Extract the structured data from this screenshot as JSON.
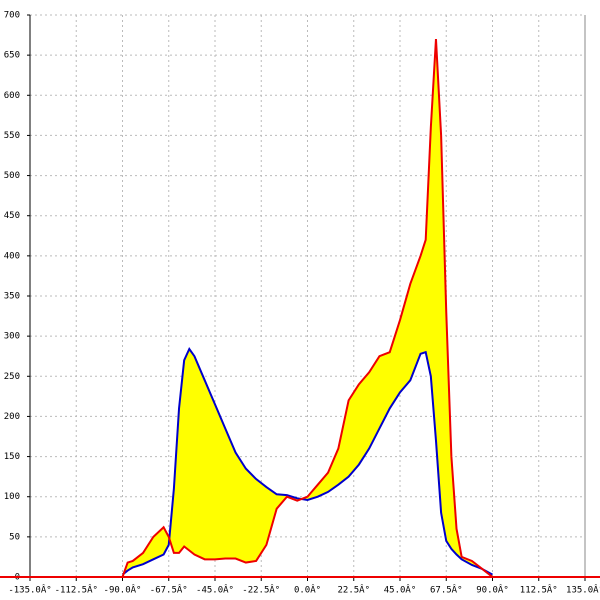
{
  "chart_data": {
    "type": "line",
    "x": [
      -90,
      -87.5,
      -85,
      -80,
      -75,
      -70,
      -67.5,
      -65,
      -62.5,
      -60,
      -57.5,
      -55,
      -50,
      -45,
      -40,
      -35,
      -30,
      -25,
      -20,
      -15,
      -10,
      -5,
      0,
      5,
      10,
      15,
      20,
      25,
      30,
      35,
      40,
      45,
      50,
      55,
      57.5,
      60,
      62.5,
      65,
      67.5,
      70,
      72.5,
      75,
      80,
      85,
      90
    ],
    "series": [
      {
        "color": "#0000cc",
        "values": [
          3,
          8,
          12,
          16,
          22,
          28,
          40,
          110,
          210,
          270,
          284,
          275,
          245,
          215,
          185,
          155,
          135,
          122,
          112,
          103,
          102,
          98,
          96,
          100,
          106,
          115,
          125,
          140,
          160,
          185,
          210,
          230,
          245,
          278,
          280,
          250,
          170,
          80,
          45,
          35,
          28,
          22,
          15,
          10,
          3
        ]
      },
      {
        "color": "#ee0000",
        "values": [
          0,
          18,
          20,
          30,
          50,
          62,
          50,
          30,
          30,
          38,
          33,
          28,
          22,
          22,
          23,
          23,
          18,
          20,
          40,
          85,
          100,
          95,
          100,
          115,
          130,
          160,
          220,
          240,
          255,
          275,
          280,
          320,
          365,
          400,
          420,
          560,
          670,
          550,
          330,
          150,
          60,
          25,
          20,
          10,
          0
        ]
      }
    ],
    "fill_color": "#ffff00",
    "xlim": [
      -135,
      135
    ],
    "xticks": [
      {
        "value": -135,
        "label": "-135.0Â°"
      },
      {
        "value": -112.5,
        "label": "-112.5Â°"
      },
      {
        "value": -90,
        "label": "-90.0Â°"
      },
      {
        "value": -67.5,
        "label": "-67.5Â°"
      },
      {
        "value": -45,
        "label": "-45.0Â°"
      },
      {
        "value": -22.5,
        "label": "-22.5Â°"
      },
      {
        "value": 0,
        "label": "0.0Â°"
      },
      {
        "value": 22.5,
        "label": "22.5Â°"
      },
      {
        "value": 45,
        "label": "45.0Â°"
      },
      {
        "value": 67.5,
        "label": "67.5Â°"
      },
      {
        "value": 90,
        "label": "90.0Â°"
      },
      {
        "value": 112.5,
        "label": "112.5Â°"
      },
      {
        "value": 135,
        "label": "135.0Â°"
      }
    ],
    "ylim": [
      0,
      700
    ],
    "yticks": [
      0,
      50,
      100,
      150,
      200,
      250,
      300,
      350,
      400,
      450,
      500,
      550,
      600,
      650,
      700
    ],
    "grid": true
  }
}
